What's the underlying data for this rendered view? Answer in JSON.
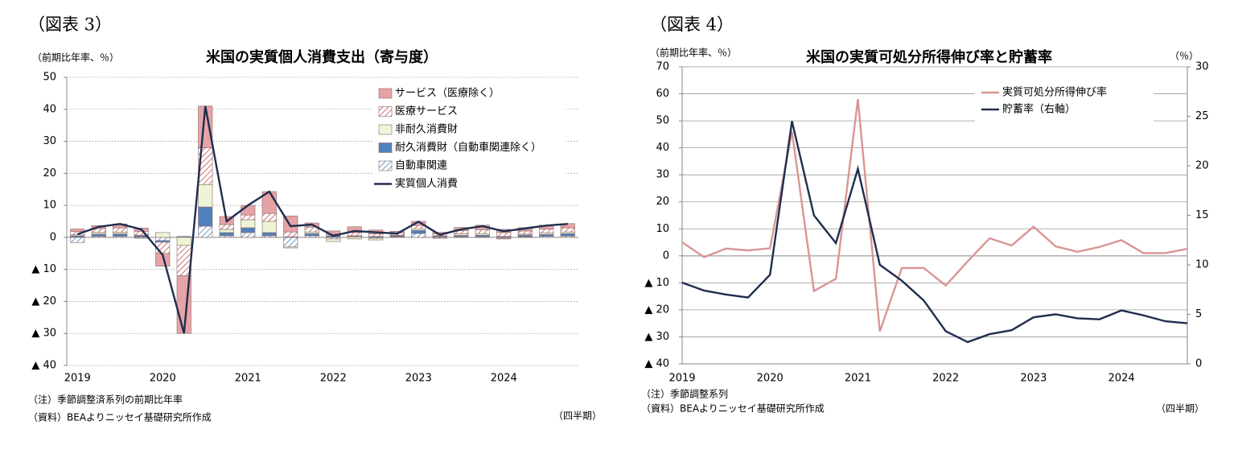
{
  "chart_data": [
    {
      "type": "bar",
      "figure_label": "（図表 3）",
      "title": "米国の実質個人消費支出（寄与度）",
      "ylabel": "（前期比年率、％）",
      "xlabel": "（四半期）",
      "notes": [
        "（注）季節調整済系列の前期比年率",
        "（資料）BEAよりニッセイ基礎研究所作成"
      ],
      "categories": [
        "2019",
        null,
        null,
        null,
        "2020",
        null,
        null,
        null,
        "2021",
        null,
        null,
        null,
        "2022",
        null,
        null,
        null,
        "2023",
        null,
        null,
        null,
        "2024",
        null,
        null,
        null
      ],
      "ylim": [
        -40,
        50
      ],
      "yticks": [
        50,
        40,
        30,
        20,
        10,
        0,
        {
          "value": -10,
          "label": "▲ 10"
        },
        {
          "value": -20,
          "label": "▲ 20"
        },
        {
          "value": -30,
          "label": "▲ 30"
        },
        {
          "value": -40,
          "label": "▲ 40"
        }
      ],
      "grid": true,
      "legend": "upper right",
      "series": [
        {
          "name": "サービス（医療除く）",
          "color": "#e6a3a6",
          "hatch": false,
          "values": [
            0.8,
            1.0,
            1.2,
            1.0,
            -4.0,
            -18.0,
            13.0,
            2.5,
            3.0,
            6.8,
            5.0,
            1.3,
            1.0,
            1.8,
            1.2,
            0.6,
            1.3,
            0.5,
            1.0,
            1.4,
            1.0,
            1.0,
            1.2,
            1.3
          ]
        },
        {
          "name": "医療サービス",
          "color": "#c0504d",
          "hatch": true,
          "values": [
            1.0,
            1.2,
            1.4,
            1.2,
            -3.5,
            -9.5,
            11.5,
            1.5,
            1.5,
            2.5,
            1.5,
            1.5,
            0.5,
            1.0,
            0.8,
            0.6,
            1.0,
            0.6,
            1.0,
            1.2,
            1.2,
            1.0,
            1.2,
            1.3
          ]
        },
        {
          "name": "非耐久消費財",
          "color": "#eef4d6",
          "hatch": false,
          "values": [
            0.3,
            0.5,
            0.5,
            0.2,
            1.5,
            -2.5,
            7.0,
            1.0,
            2.5,
            3.5,
            -0.3,
            0.5,
            -0.8,
            -0.5,
            -0.5,
            0.2,
            0.5,
            0.2,
            0.5,
            0.5,
            -0.2,
            0.3,
            0.5,
            0.5
          ]
        },
        {
          "name": "耐久消費財（自動車関連除く）",
          "color": "#4f81bd",
          "hatch": false,
          "values": [
            0.5,
            0.7,
            0.8,
            0.5,
            -0.5,
            0.3,
            6.0,
            1.0,
            1.5,
            1.0,
            0.2,
            0.7,
            0.5,
            0.2,
            0.3,
            0.3,
            1.0,
            0.3,
            0.4,
            0.5,
            0.3,
            0.5,
            0.6,
            0.8
          ]
        },
        {
          "name": "自動車関連",
          "color": "#4f81bd",
          "hatch": true,
          "values": [
            -1.6,
            0.3,
            0.3,
            -0.3,
            -1.0,
            0.0,
            3.5,
            0.5,
            1.5,
            0.5,
            -3.0,
            0.5,
            -0.5,
            0.3,
            -0.3,
            0.2,
            1.2,
            -0.3,
            0.2,
            0.2,
            -0.3,
            0.2,
            0.3,
            0.4
          ]
        },
        {
          "name": "実質個人消費",
          "type": "line",
          "color": "#1f2d4e",
          "values": [
            1.0,
            3.3,
            4.2,
            2.5,
            -5.5,
            -30.0,
            41.0,
            5.0,
            10.0,
            14.3,
            3.5,
            4.0,
            0.5,
            2.0,
            1.6,
            1.2,
            4.9,
            0.8,
            2.5,
            3.5,
            1.9,
            2.8,
            3.7,
            4.2
          ]
        }
      ]
    },
    {
      "type": "line",
      "figure_label": "（図表 4）",
      "title": "米国の実質可処分所得伸び率と貯蓄率",
      "ylabel": "（前期比年率、％）",
      "y2label": "（％）",
      "xlabel": "（四半期）",
      "notes": [
        "（注）季節調整系列",
        "（資料）BEAよりニッセイ基礎研究所作成"
      ],
      "categories": [
        "2019",
        null,
        null,
        null,
        "2020",
        null,
        null,
        null,
        "2021",
        null,
        null,
        null,
        "2022",
        null,
        null,
        null,
        "2023",
        null,
        null,
        null,
        "2024",
        null,
        null,
        null
      ],
      "ylim": [
        -40,
        70
      ],
      "yticks": [
        70,
        60,
        50,
        40,
        30,
        20,
        10,
        0,
        {
          "value": -10,
          "label": "▲ 10"
        },
        {
          "value": -20,
          "label": "▲ 20"
        },
        {
          "value": -30,
          "label": "▲ 30"
        },
        {
          "value": -40,
          "label": "▲ 40"
        }
      ],
      "y2lim": [
        0,
        30
      ],
      "y2ticks": [
        0,
        5,
        10,
        15,
        20,
        25,
        30
      ],
      "grid": true,
      "legend": "upper right",
      "series": [
        {
          "name": "実質可処分所得伸び率",
          "color": "#d99694",
          "values": [
            5.0,
            -0.5,
            2.7,
            2.0,
            2.8,
            46.0,
            -13.0,
            -8.5,
            58.0,
            -28.0,
            -4.5,
            -4.5,
            -11.0,
            -2.0,
            6.5,
            3.8,
            10.8,
            3.5,
            1.5,
            3.3,
            5.8,
            1.0,
            1.0,
            2.6
          ]
        },
        {
          "name": "貯蓄率（右軸）",
          "color": "#1f2d4e",
          "axis": "y2",
          "values": [
            8.2,
            7.4,
            7.0,
            6.7,
            9.0,
            24.5,
            15.0,
            12.2,
            19.7,
            10.0,
            8.4,
            6.4,
            3.3,
            2.2,
            3.0,
            3.4,
            4.7,
            5.0,
            4.6,
            4.5,
            5.4,
            4.9,
            4.3,
            4.1
          ]
        }
      ]
    }
  ]
}
